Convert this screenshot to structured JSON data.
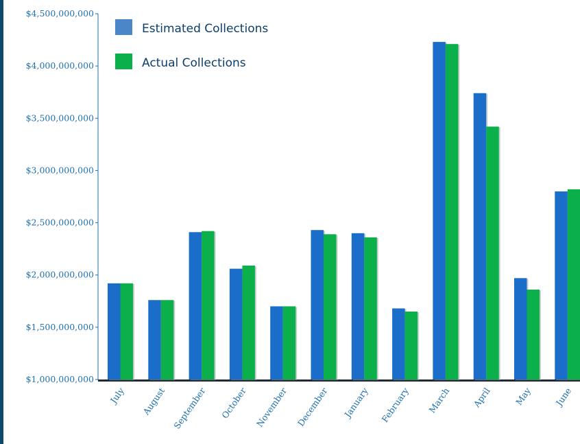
{
  "chart_data": {
    "type": "bar",
    "title": "",
    "xlabel": "",
    "ylabel": "",
    "ylim": [
      1000000000,
      4500000000
    ],
    "yticks": [
      1000000000,
      1500000000,
      2000000000,
      2500000000,
      3000000000,
      3500000000,
      4000000000,
      4500000000
    ],
    "ytick_labels": [
      "$1,000,000,000",
      "$1,500,000,000",
      "$2,000,000,000",
      "$2,500,000,000",
      "$3,000,000,000",
      "$3,500,000,000",
      "$4,000,000,000",
      "$4,500,000,000"
    ],
    "categories": [
      "July",
      "August",
      "September",
      "October",
      "November",
      "December",
      "January",
      "February",
      "March",
      "April",
      "May",
      "June"
    ],
    "series": [
      {
        "name": "Estimated Collections",
        "color": "#1a6dc8",
        "legend_color": "#4a86c8",
        "values": [
          1920000000,
          1760000000,
          2410000000,
          2060000000,
          1700000000,
          2430000000,
          2400000000,
          1680000000,
          4230000000,
          3740000000,
          1970000000,
          2800000000
        ]
      },
      {
        "name": "Actual Collections",
        "color": "#0bb04b",
        "legend_color": "#0bb04b",
        "values": [
          1920000000,
          1760000000,
          2420000000,
          2090000000,
          1700000000,
          2390000000,
          2360000000,
          1650000000,
          4210000000,
          3420000000,
          1860000000,
          2820000000
        ]
      }
    ],
    "legend_position": "top-left",
    "grid": false
  }
}
